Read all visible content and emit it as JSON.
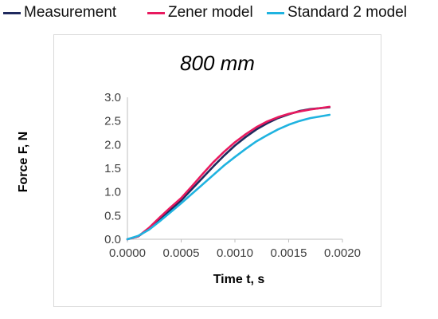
{
  "legend": [
    {
      "label": "Measurement",
      "color": "#1f2a5e"
    },
    {
      "label": "Zener model",
      "color": "#e8195f"
    },
    {
      "label": "Standard 2 model",
      "color": "#1fb3e0"
    }
  ],
  "chart_data": {
    "type": "line",
    "title": "800 mm",
    "xlabel": "Time t, s",
    "ylabel": "Force F, N",
    "xlim": [
      0,
      0.002
    ],
    "ylim": [
      0,
      3.0
    ],
    "x_ticks": [
      "0.0000",
      "0.0005",
      "0.0010",
      "0.0015",
      "0.0020"
    ],
    "y_ticks": [
      "0.0",
      "0.5",
      "1.0",
      "1.5",
      "2.0",
      "2.5",
      "3.0"
    ],
    "grid": "none",
    "legend_position": "top",
    "series": [
      {
        "name": "Measurement",
        "color": "#1f2a5e",
        "points": [
          [
            0.0,
            0.0
          ],
          [
            0.0001,
            0.06
          ],
          [
            0.0002,
            0.22
          ],
          [
            0.0003,
            0.42
          ],
          [
            0.0004,
            0.62
          ],
          [
            0.0005,
            0.82
          ],
          [
            0.0006,
            1.06
          ],
          [
            0.0007,
            1.3
          ],
          [
            0.0008,
            1.54
          ],
          [
            0.0009,
            1.77
          ],
          [
            0.001,
            1.98
          ],
          [
            0.0011,
            2.16
          ],
          [
            0.0012,
            2.32
          ],
          [
            0.0013,
            2.45
          ],
          [
            0.0014,
            2.56
          ],
          [
            0.0015,
            2.64
          ],
          [
            0.0016,
            2.71
          ],
          [
            0.0017,
            2.75
          ],
          [
            0.00188,
            2.79
          ]
        ]
      },
      {
        "name": "Zener model",
        "color": "#e8195f",
        "points": [
          [
            0.0,
            0.0
          ],
          [
            0.0001,
            0.06
          ],
          [
            0.0002,
            0.24
          ],
          [
            0.0003,
            0.46
          ],
          [
            0.0004,
            0.67
          ],
          [
            0.0005,
            0.87
          ],
          [
            0.0006,
            1.12
          ],
          [
            0.0007,
            1.38
          ],
          [
            0.0008,
            1.63
          ],
          [
            0.0009,
            1.85
          ],
          [
            0.001,
            2.05
          ],
          [
            0.0011,
            2.22
          ],
          [
            0.0012,
            2.37
          ],
          [
            0.0013,
            2.49
          ],
          [
            0.0014,
            2.58
          ],
          [
            0.0015,
            2.65
          ],
          [
            0.0016,
            2.7
          ],
          [
            0.0017,
            2.74
          ],
          [
            0.00188,
            2.8
          ]
        ]
      },
      {
        "name": "Standard 2 model",
        "color": "#1fb3e0",
        "points": [
          [
            0.0,
            0.0
          ],
          [
            0.0001,
            0.07
          ],
          [
            0.0002,
            0.2
          ],
          [
            0.0003,
            0.38
          ],
          [
            0.0004,
            0.57
          ],
          [
            0.0005,
            0.76
          ],
          [
            0.0006,
            0.96
          ],
          [
            0.0007,
            1.16
          ],
          [
            0.0008,
            1.36
          ],
          [
            0.0009,
            1.56
          ],
          [
            0.001,
            1.74
          ],
          [
            0.0011,
            1.91
          ],
          [
            0.0012,
            2.07
          ],
          [
            0.0013,
            2.2
          ],
          [
            0.0014,
            2.32
          ],
          [
            0.0015,
            2.42
          ],
          [
            0.0016,
            2.5
          ],
          [
            0.0017,
            2.56
          ],
          [
            0.00188,
            2.63
          ]
        ]
      }
    ]
  }
}
